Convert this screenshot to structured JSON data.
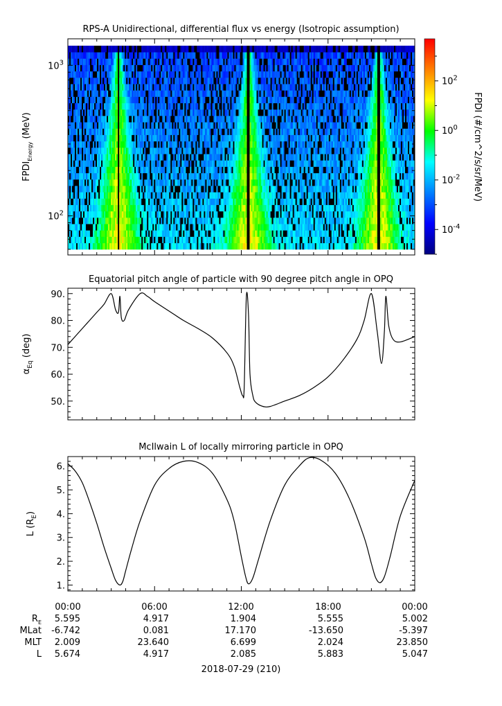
{
  "chart_data": [
    {
      "type": "heatmap",
      "title": "RPS-A Unidirectional, differential flux vs energy (Isotropic assumption)",
      "ylabel_main": "FPDI",
      "ylabel_sub": "Energy",
      "ylabel_unit": " (MeV)",
      "yscale": "log",
      "ylim": [
        55,
        1500
      ],
      "y_ticks": [
        {
          "base": "10",
          "exp": "3",
          "value": 1000
        },
        {
          "base": "10",
          "exp": "2",
          "value": 100
        }
      ],
      "energy_range": [
        60,
        1350
      ],
      "xlim_hours": [
        0,
        24
      ],
      "peak_times_hours": [
        3.5,
        12.5,
        21.5
      ],
      "colorbar": {
        "label": "FPDI (#/cm^2/s/sr/MeV)",
        "scale": "log",
        "range": [
          1e-05,
          5000
        ],
        "ticks": [
          {
            "base": "10",
            "exp": "2",
            "value": 100
          },
          {
            "base": "10",
            "exp": "0",
            "value": 1
          },
          {
            "base": "10",
            "exp": "-2",
            "value": 0.01
          },
          {
            "base": "10",
            "exp": "-4",
            "value": 0.0001
          }
        ],
        "colors": [
          "#000080",
          "#0000ff",
          "#0080ff",
          "#00ffff",
          "#00ff00",
          "#ffff00",
          "#ff8000",
          "#ff0000"
        ]
      }
    },
    {
      "type": "line",
      "title": "Equatorial pitch angle of particle with 90 degree pitch angle in OPQ",
      "ylabel_main": "α",
      "ylabel_sub": "Eq",
      "ylabel_unit": " (deg)",
      "ylim": [
        43,
        92
      ],
      "y_ticks": [
        "50.",
        "60.",
        "70.",
        "80.",
        "90."
      ],
      "x_hours": [
        0,
        1,
        2,
        2.5,
        3.0,
        3.3,
        3.5,
        3.6,
        3.7,
        3.9,
        4.2,
        5.0,
        5.5,
        6,
        7,
        8,
        9,
        10,
        11,
        11.5,
        11.9,
        12.1,
        12.2,
        12.35,
        12.5,
        12.6,
        12.8,
        13.0,
        13.5,
        14,
        15,
        16,
        17,
        18,
        19,
        20,
        20.5,
        21.0,
        21.4,
        21.7,
        21.9,
        22.0,
        22.2,
        22.5,
        23,
        24
      ],
      "values": [
        71,
        77,
        83,
        86,
        90,
        84,
        83,
        89,
        81,
        80,
        84,
        90,
        89,
        87,
        83.5,
        80,
        77,
        73.5,
        68,
        63,
        55,
        52,
        55,
        89,
        82,
        60,
        52,
        49.5,
        48,
        48,
        50,
        52,
        55,
        59,
        65,
        73,
        80,
        90,
        76,
        64,
        76,
        89,
        78,
        73,
        72,
        74
      ]
    },
    {
      "type": "line",
      "title": "McIlwain L of locally mirroring particle in OPQ",
      "ylabel_main": "L (R",
      "ylabel_sub": "E",
      "ylabel_unit": ")",
      "ylim": [
        0.75,
        6.4
      ],
      "y_ticks": [
        "1.",
        "2.",
        "3.",
        "4.",
        "5.",
        "6."
      ],
      "x_hours": [
        0,
        0.5,
        1,
        1.5,
        2,
        2.5,
        3,
        3.3,
        3.6,
        3.8,
        4.0,
        4.4,
        5,
        6,
        7,
        8,
        9,
        10,
        11,
        11.5,
        12,
        12.3,
        12.5,
        12.8,
        13.2,
        14,
        15,
        16,
        16.7,
        17.5,
        18.5,
        19.5,
        20.5,
        21,
        21.3,
        21.6,
        21.9,
        22.3,
        23,
        24
      ],
      "values": [
        6.1,
        5.8,
        5.3,
        4.5,
        3.6,
        2.6,
        1.7,
        1.2,
        1.0,
        1.15,
        1.6,
        2.5,
        3.7,
        5.2,
        5.9,
        6.2,
        6.15,
        5.7,
        4.6,
        3.7,
        2.2,
        1.35,
        1.05,
        1.3,
        2.1,
        3.7,
        5.2,
        6.0,
        6.35,
        6.25,
        5.7,
        4.6,
        3.0,
        1.9,
        1.3,
        1.1,
        1.35,
        2.2,
        3.9,
        5.4
      ]
    }
  ],
  "time_axis": {
    "labels": [
      "00:00",
      "06:00",
      "12:00",
      "18:00",
      "00:00"
    ],
    "date": "2018-07-29 (210)"
  },
  "ephemeris": {
    "rows": [
      {
        "label": "R",
        "sub": "E",
        "values": [
          "5.595",
          "4.917",
          "1.904",
          "5.555",
          "5.002"
        ]
      },
      {
        "label": "MLat",
        "sub": "",
        "values": [
          "-6.742",
          "0.081",
          "17.170",
          "-13.650",
          "-5.397"
        ]
      },
      {
        "label": "MLT",
        "sub": "",
        "values": [
          "2.009",
          "23.640",
          "6.699",
          "2.024",
          "23.850"
        ]
      },
      {
        "label": "L",
        "sub": "",
        "values": [
          "5.674",
          "4.917",
          "2.085",
          "5.883",
          "5.047"
        ]
      }
    ]
  }
}
